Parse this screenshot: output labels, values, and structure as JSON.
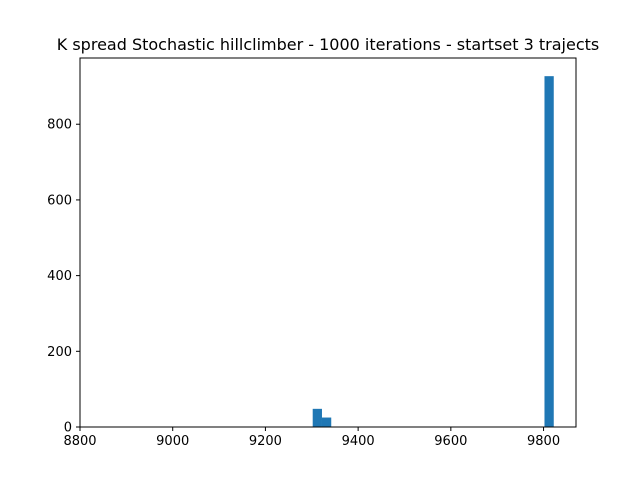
{
  "chart_data": {
    "type": "bar",
    "title": "K spread Stochastic hillclimber - 1000 iterations - startset 3 trajects",
    "xlabel": "",
    "ylabel": "",
    "xlim": [
      8800,
      9870
    ],
    "ylim": [
      0,
      975
    ],
    "x_ticks": [
      8800,
      9000,
      9200,
      9400,
      9600,
      9800
    ],
    "y_ticks": [
      0,
      200,
      400,
      600,
      800
    ],
    "bins": [
      {
        "x0": 9302,
        "x1": 9322,
        "count": 48
      },
      {
        "x0": 9322,
        "x1": 9342,
        "count": 25
      },
      {
        "x0": 9802,
        "x1": 9822,
        "count": 927
      }
    ],
    "bar_color": "#1f77b4",
    "grid": false
  }
}
